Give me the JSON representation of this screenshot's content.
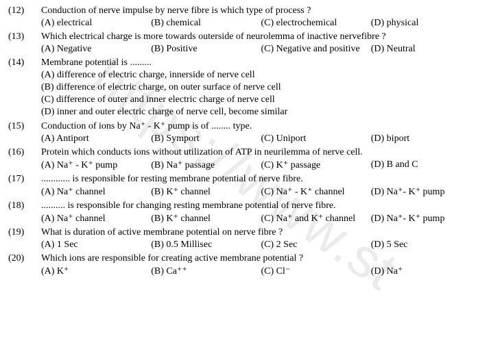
{
  "watermark": "https://www.st",
  "questions": [
    {
      "num": "(12)",
      "text": "Conduction of nerve impulse by nerve fibre is which type of process ?",
      "layout": "row4",
      "opts": [
        "(A) electrical",
        "(B) chemical",
        "(C) electrochemical",
        "(D) physical"
      ]
    },
    {
      "num": "(13)",
      "text": "Which electrical charge is more towards outerside of neurolemma of inactive nervefibre ?",
      "layout": "row4",
      "opts": [
        "(A) Negative",
        "(B) Positive",
        "(C) Negative and positive",
        "(D) Neutral"
      ]
    },
    {
      "num": "(14)",
      "text": "Membrane potential is .........",
      "layout": "stack",
      "opts": [
        "(A) difference of electric charge, innerside of nerve cell",
        "(B) difference of electric charge, on outer surface of nerve cell",
        "(C) difference of outer and inner electric charge of nerve cell",
        "(D) inner and outer electric charge of nerve cell, become similar"
      ]
    },
    {
      "num": "(15)",
      "text": "Conduction of ions by Na⁺ - K⁺  pump is of ........ type.",
      "layout": "row4",
      "opts": [
        "(A) Antiport",
        "(B) Symport",
        "(C) Uniport",
        "(D) biport"
      ]
    },
    {
      "num": "(16)",
      "text": "Protein which conducts ions without utilization of ATP in neurilemma of nerve cell.",
      "layout": "row4",
      "opts": [
        "(A) Na⁺ - K⁺ pump",
        "(B) Na⁺ passage",
        "(C) K⁺ passage",
        "(D) B and C"
      ]
    },
    {
      "num": "(17)",
      "text": "............ is responsible for resting membrane potential of nerve fibre.",
      "layout": "row4",
      "opts": [
        "(A) Na⁺ channel",
        "(B) K⁺ channel",
        "(C) Na⁺ - K⁺ channel",
        "(D) Na⁺- K⁺ pump"
      ]
    },
    {
      "num": "(18)",
      "text": ".......... is responsible for changing resting membrane potential of nerve fibre.",
      "layout": "row4",
      "opts": [
        "(A) Na⁺ channel",
        "(B) K⁺ channel",
        "(C) Na⁺ and K⁺ channel",
        "(D) Na⁺- K⁺ pump"
      ]
    },
    {
      "num": "(19)",
      "text": "What is duration of active membrane potential on nerve fibre ?",
      "layout": "row4",
      "opts": [
        "(A) 1 Sec",
        "(B) 0.5 Millisec",
        "(C) 2 Sec",
        "(D) 5 Sec"
      ]
    },
    {
      "num": "(20)",
      "text": "Which ions are responsible for creating active membrane potential ?",
      "layout": "row4",
      "opts": [
        "(A) K⁺",
        "(B) Ca⁺⁺",
        "(C) Cl⁻",
        "(D) Na⁺"
      ]
    }
  ]
}
